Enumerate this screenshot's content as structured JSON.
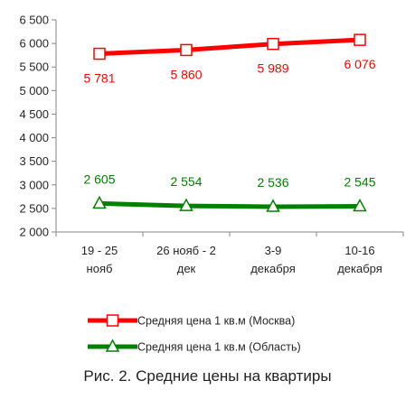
{
  "caption": "Рис. 2. Средние цены на квартиры",
  "chart_data": {
    "type": "line",
    "categories": [
      [
        "19 - 25",
        "нояб"
      ],
      [
        "26 нояб - 2",
        "дек"
      ],
      [
        "3-9",
        "декабря"
      ],
      [
        "10-16",
        "декабря"
      ]
    ],
    "ylim": [
      2000,
      6500
    ],
    "yticks": [
      2000,
      2500,
      3000,
      3500,
      4000,
      4500,
      5000,
      5500,
      6000,
      6500
    ],
    "ytick_labels": [
      "2 000",
      "2 500",
      "3 000",
      "3 500",
      "4 000",
      "4 500",
      "5 000",
      "5 500",
      "6 000",
      "6 500"
    ],
    "grid": false,
    "legend_position": "bottom",
    "series": [
      {
        "name": "Средняя цена 1 кв.м (Москва)",
        "values": [
          5781,
          5860,
          5989,
          6076
        ],
        "labels": [
          "5 781",
          "5 860",
          "5 989",
          "6 076"
        ],
        "color": "#ff0000",
        "marker": "square"
      },
      {
        "name": "Средняя цена 1 кв.м (Область)",
        "values": [
          2605,
          2554,
          2536,
          2545
        ],
        "labels": [
          "2 605",
          "2 554",
          "2 536",
          "2 545"
        ],
        "color": "#008000",
        "marker": "triangle"
      }
    ]
  }
}
